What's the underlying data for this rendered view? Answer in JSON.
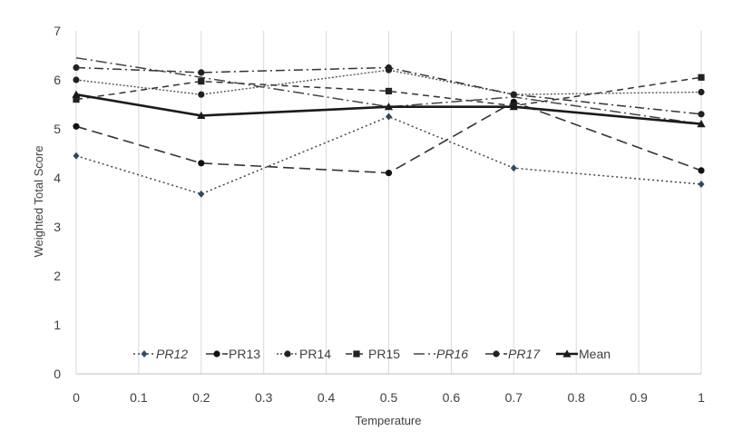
{
  "chart_data": {
    "type": "line",
    "title": "",
    "xlabel": "Temperature",
    "ylabel": "Weighted Total Score",
    "xlim": [
      0,
      1
    ],
    "ylim": [
      0,
      7
    ],
    "x_ticks": [
      0,
      0.1,
      0.2,
      0.3,
      0.4,
      0.5,
      0.6,
      0.7,
      0.8,
      0.9,
      1
    ],
    "x_tick_labels": [
      "0",
      "0.1",
      "0.2",
      "0.3",
      "0.4",
      "0.5",
      "0.6",
      "0.7",
      "0.8",
      "0.9",
      "1"
    ],
    "y_ticks": [
      0,
      1,
      2,
      3,
      4,
      5,
      6,
      7
    ],
    "y_tick_labels": [
      "0",
      "1",
      "2",
      "3",
      "4",
      "5",
      "6",
      "7"
    ],
    "grid": "vertical",
    "legend_position": "bottom-inside",
    "x": [
      0,
      0.2,
      0.5,
      0.7,
      1
    ],
    "series": [
      {
        "name": "PR12",
        "values": [
          4.45,
          3.67,
          5.25,
          4.2,
          3.87
        ],
        "marker": "diamond",
        "dash": "2,3",
        "color": "#444444",
        "marker_color": "#2f4a66",
        "width": 1.5,
        "italic": true
      },
      {
        "name": "PR13",
        "values": [
          5.05,
          4.3,
          4.1,
          5.55,
          4.15
        ],
        "marker": "circle",
        "dash": "12,6",
        "color": "#333333",
        "marker_color": "#111111",
        "width": 1.6,
        "italic": false
      },
      {
        "name": "PR14",
        "values": [
          6.0,
          5.7,
          6.2,
          5.7,
          5.75
        ],
        "marker": "circle",
        "dash": "2,2",
        "color": "#555555",
        "marker_color": "#222222",
        "width": 1.4,
        "italic": false
      },
      {
        "name": "PR15",
        "values": [
          5.6,
          5.97,
          5.77,
          5.47,
          6.05
        ],
        "marker": "square",
        "dash": "7,5",
        "color": "#333333",
        "marker_color": "#222222",
        "width": 1.5,
        "italic": false
      },
      {
        "name": "PR16",
        "values": [
          6.45,
          6.05,
          5.45,
          5.65,
          5.1
        ],
        "marker": "none",
        "dash": "12,4,2,4",
        "color": "#444444",
        "marker_color": "#444444",
        "width": 1.5,
        "italic": true
      },
      {
        "name": "PR17",
        "values": [
          6.25,
          6.15,
          6.25,
          5.7,
          5.3
        ],
        "marker": "circle",
        "dash": "10,4,2,4",
        "color": "#333333",
        "marker_color": "#222222",
        "width": 1.5,
        "italic": true
      },
      {
        "name": "Mean",
        "values": [
          5.7,
          5.27,
          5.45,
          5.45,
          5.1
        ],
        "marker": "triangle",
        "dash": "",
        "color": "#1a1a1a",
        "marker_color": "#1a1a1a",
        "width": 2.6,
        "italic": false
      }
    ]
  }
}
